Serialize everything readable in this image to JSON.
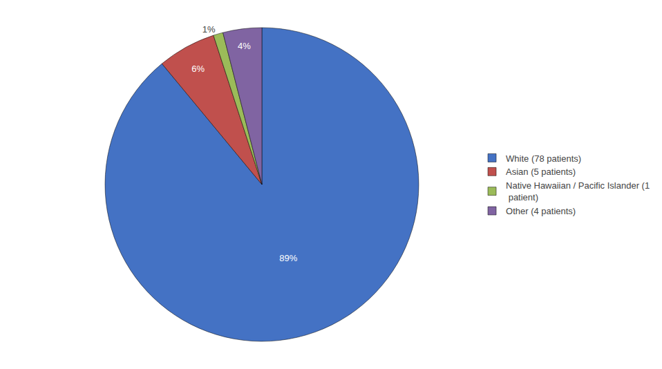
{
  "chart_data": {
    "type": "pie",
    "labels": [
      "White (78 patients)",
      "Asian (5 patients)",
      "Native Hawaiian / Pacific Islander (1\n patient)",
      "Other (4 patients)"
    ],
    "values": [
      89,
      6,
      1,
      4
    ],
    "value_labels": [
      "89%",
      "6%",
      "1%",
      "4%"
    ],
    "colors": [
      "#4472C4",
      "#C0504D",
      "#9BBB59",
      "#8064A2"
    ],
    "data_labels": true,
    "legend": "right"
  }
}
